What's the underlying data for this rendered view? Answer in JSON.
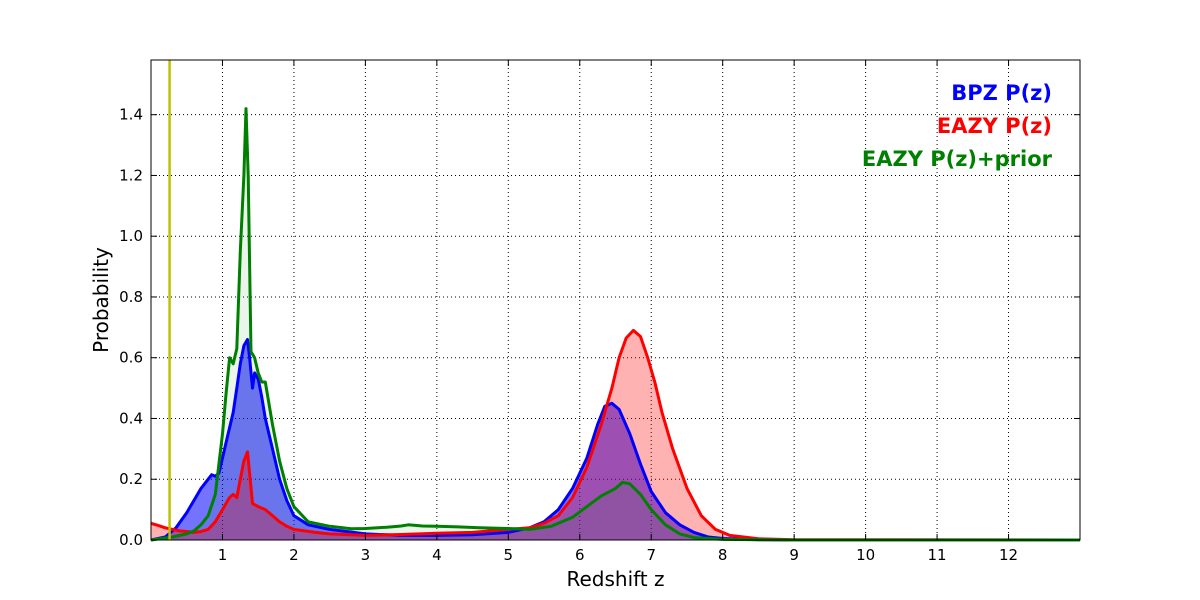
{
  "chart_data": {
    "type": "area",
    "xlabel": "Redshift z",
    "ylabel": "Probability",
    "xlim": [
      0,
      13
    ],
    "ylim": [
      0,
      1.58
    ],
    "x_ticks": [
      1,
      2,
      3,
      4,
      5,
      6,
      7,
      8,
      9,
      10,
      11,
      12
    ],
    "y_ticks": [
      0.0,
      0.2,
      0.4,
      0.6,
      0.8,
      1.0,
      1.2,
      1.4
    ],
    "grid": true,
    "legend_placement": "top-right",
    "vertical_line": {
      "x": 0.26,
      "color": "#bfbf00"
    },
    "series": [
      {
        "name": "BPZ P(z)",
        "color": "#0000ff",
        "fill": "#0000ff",
        "fill_opacity": 0.55,
        "points": [
          [
            0,
            0
          ],
          [
            0.2,
            0.01
          ],
          [
            0.35,
            0.04
          ],
          [
            0.5,
            0.09
          ],
          [
            0.6,
            0.13
          ],
          [
            0.7,
            0.17
          ],
          [
            0.8,
            0.2
          ],
          [
            0.85,
            0.215
          ],
          [
            0.9,
            0.21
          ],
          [
            0.95,
            0.22
          ],
          [
            1.0,
            0.27
          ],
          [
            1.05,
            0.32
          ],
          [
            1.1,
            0.37
          ],
          [
            1.15,
            0.42
          ],
          [
            1.2,
            0.5
          ],
          [
            1.25,
            0.58
          ],
          [
            1.3,
            0.64
          ],
          [
            1.35,
            0.66
          ],
          [
            1.38,
            0.6
          ],
          [
            1.42,
            0.5
          ],
          [
            1.45,
            0.55
          ],
          [
            1.5,
            0.53
          ],
          [
            1.55,
            0.47
          ],
          [
            1.6,
            0.4
          ],
          [
            1.7,
            0.3
          ],
          [
            1.8,
            0.2
          ],
          [
            1.9,
            0.13
          ],
          [
            2.0,
            0.08
          ],
          [
            2.2,
            0.05
          ],
          [
            2.5,
            0.035
          ],
          [
            3.0,
            0.02
          ],
          [
            3.5,
            0.015
          ],
          [
            4.0,
            0.015
          ],
          [
            4.5,
            0.017
          ],
          [
            5.0,
            0.025
          ],
          [
            5.3,
            0.04
          ],
          [
            5.5,
            0.06
          ],
          [
            5.7,
            0.1
          ],
          [
            5.9,
            0.17
          ],
          [
            6.1,
            0.27
          ],
          [
            6.25,
            0.38
          ],
          [
            6.35,
            0.44
          ],
          [
            6.45,
            0.45
          ],
          [
            6.55,
            0.43
          ],
          [
            6.7,
            0.35
          ],
          [
            6.85,
            0.25
          ],
          [
            7.0,
            0.16
          ],
          [
            7.2,
            0.09
          ],
          [
            7.4,
            0.05
          ],
          [
            7.6,
            0.025
          ],
          [
            7.8,
            0.01
          ],
          [
            8.0,
            0.005
          ],
          [
            8.5,
            0.001
          ],
          [
            9,
            0
          ],
          [
            13,
            0
          ]
        ]
      },
      {
        "name": "EAZY P(z)",
        "color": "#ff0000",
        "fill": "#ff0000",
        "fill_opacity": 0.3,
        "points": [
          [
            0,
            0.055
          ],
          [
            0.1,
            0.048
          ],
          [
            0.2,
            0.04
          ],
          [
            0.3,
            0.035
          ],
          [
            0.4,
            0.03
          ],
          [
            0.5,
            0.028
          ],
          [
            0.6,
            0.025
          ],
          [
            0.7,
            0.028
          ],
          [
            0.8,
            0.035
          ],
          [
            0.9,
            0.06
          ],
          [
            1.0,
            0.1
          ],
          [
            1.05,
            0.12
          ],
          [
            1.1,
            0.14
          ],
          [
            1.15,
            0.15
          ],
          [
            1.2,
            0.14
          ],
          [
            1.25,
            0.2
          ],
          [
            1.3,
            0.26
          ],
          [
            1.35,
            0.29
          ],
          [
            1.38,
            0.22
          ],
          [
            1.42,
            0.12
          ],
          [
            1.5,
            0.11
          ],
          [
            1.6,
            0.1
          ],
          [
            1.7,
            0.08
          ],
          [
            1.8,
            0.06
          ],
          [
            1.9,
            0.045
          ],
          [
            2.0,
            0.035
          ],
          [
            2.3,
            0.025
          ],
          [
            2.5,
            0.02
          ],
          [
            3.0,
            0.015
          ],
          [
            3.5,
            0.018
          ],
          [
            4.0,
            0.022
          ],
          [
            4.5,
            0.025
          ],
          [
            5.0,
            0.035
          ],
          [
            5.3,
            0.04
          ],
          [
            5.5,
            0.055
          ],
          [
            5.7,
            0.08
          ],
          [
            5.9,
            0.14
          ],
          [
            6.1,
            0.24
          ],
          [
            6.3,
            0.38
          ],
          [
            6.45,
            0.5
          ],
          [
            6.55,
            0.6
          ],
          [
            6.65,
            0.665
          ],
          [
            6.75,
            0.69
          ],
          [
            6.85,
            0.67
          ],
          [
            6.95,
            0.6
          ],
          [
            7.05,
            0.52
          ],
          [
            7.15,
            0.42
          ],
          [
            7.3,
            0.3
          ],
          [
            7.5,
            0.17
          ],
          [
            7.7,
            0.08
          ],
          [
            7.9,
            0.035
          ],
          [
            8.1,
            0.015
          ],
          [
            8.5,
            0.004
          ],
          [
            9,
            0.001
          ],
          [
            13,
            0
          ]
        ]
      },
      {
        "name": "EAZY P(z)+prior",
        "color": "#008000",
        "fill": "#008000",
        "fill_opacity": 0.08,
        "points": [
          [
            0,
            0
          ],
          [
            0.3,
            0.01
          ],
          [
            0.5,
            0.02
          ],
          [
            0.6,
            0.03
          ],
          [
            0.7,
            0.05
          ],
          [
            0.8,
            0.08
          ],
          [
            0.9,
            0.15
          ],
          [
            0.95,
            0.25
          ],
          [
            1.0,
            0.35
          ],
          [
            1.05,
            0.48
          ],
          [
            1.1,
            0.6
          ],
          [
            1.15,
            0.58
          ],
          [
            1.2,
            0.63
          ],
          [
            1.25,
            0.95
          ],
          [
            1.3,
            1.2
          ],
          [
            1.33,
            1.42
          ],
          [
            1.36,
            1.2
          ],
          [
            1.4,
            0.62
          ],
          [
            1.45,
            0.6
          ],
          [
            1.5,
            0.55
          ],
          [
            1.55,
            0.52
          ],
          [
            1.6,
            0.52
          ],
          [
            1.65,
            0.45
          ],
          [
            1.7,
            0.38
          ],
          [
            1.8,
            0.26
          ],
          [
            1.9,
            0.17
          ],
          [
            2.0,
            0.11
          ],
          [
            2.2,
            0.06
          ],
          [
            2.5,
            0.045
          ],
          [
            2.8,
            0.037
          ],
          [
            3.0,
            0.038
          ],
          [
            3.3,
            0.042
          ],
          [
            3.5,
            0.046
          ],
          [
            3.6,
            0.05
          ],
          [
            3.8,
            0.046
          ],
          [
            4.0,
            0.045
          ],
          [
            4.3,
            0.043
          ],
          [
            4.6,
            0.04
          ],
          [
            5.0,
            0.038
          ],
          [
            5.3,
            0.035
          ],
          [
            5.6,
            0.045
          ],
          [
            5.9,
            0.075
          ],
          [
            6.1,
            0.11
          ],
          [
            6.3,
            0.145
          ],
          [
            6.5,
            0.17
          ],
          [
            6.6,
            0.19
          ],
          [
            6.7,
            0.185
          ],
          [
            6.85,
            0.15
          ],
          [
            7.0,
            0.1
          ],
          [
            7.2,
            0.05
          ],
          [
            7.4,
            0.02
          ],
          [
            7.6,
            0.008
          ],
          [
            8.0,
            0.002
          ],
          [
            9,
            0
          ],
          [
            13,
            0
          ]
        ]
      }
    ]
  }
}
